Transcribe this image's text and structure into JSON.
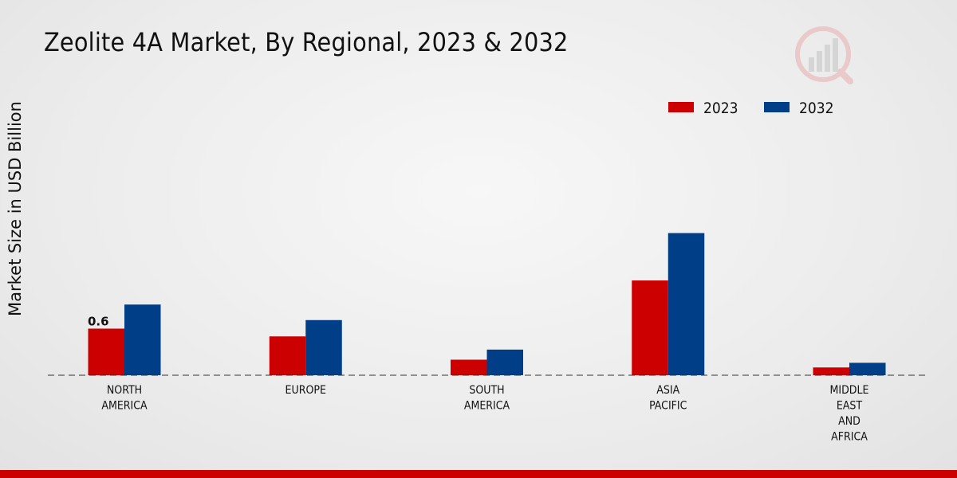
{
  "title": "Zeolite 4A Market, By Regional, 2023 & 2032",
  "chart_data": {
    "type": "bar",
    "title": "Zeolite 4A Market, By Regional, 2023 & 2032",
    "xlabel": "",
    "ylabel": "Market Size in USD Billion",
    "categories": [
      [
        "NORTH",
        "AMERICA"
      ],
      [
        "EUROPE"
      ],
      [
        "SOUTH",
        "AMERICA"
      ],
      [
        "ASIA",
        "PACIFIC"
      ],
      [
        "MIDDLE",
        "EAST",
        "AND",
        "AFRICA"
      ]
    ],
    "series": [
      {
        "name": "2023",
        "color": "#cc0000",
        "values": [
          0.6,
          0.5,
          0.2,
          1.22,
          0.1
        ]
      },
      {
        "name": "2032",
        "color": "#003f87",
        "values": [
          0.91,
          0.71,
          0.33,
          1.83,
          0.16
        ]
      }
    ],
    "data_labels": [
      {
        "series": 0,
        "index": 0,
        "text": "0.6"
      }
    ],
    "ylim": [
      0,
      4.0
    ],
    "grid": false,
    "legend_position": "top-right"
  },
  "colors": {
    "accent": "#cc0000",
    "secondary": "#003f87"
  },
  "icons": [
    "logo-icon"
  ]
}
